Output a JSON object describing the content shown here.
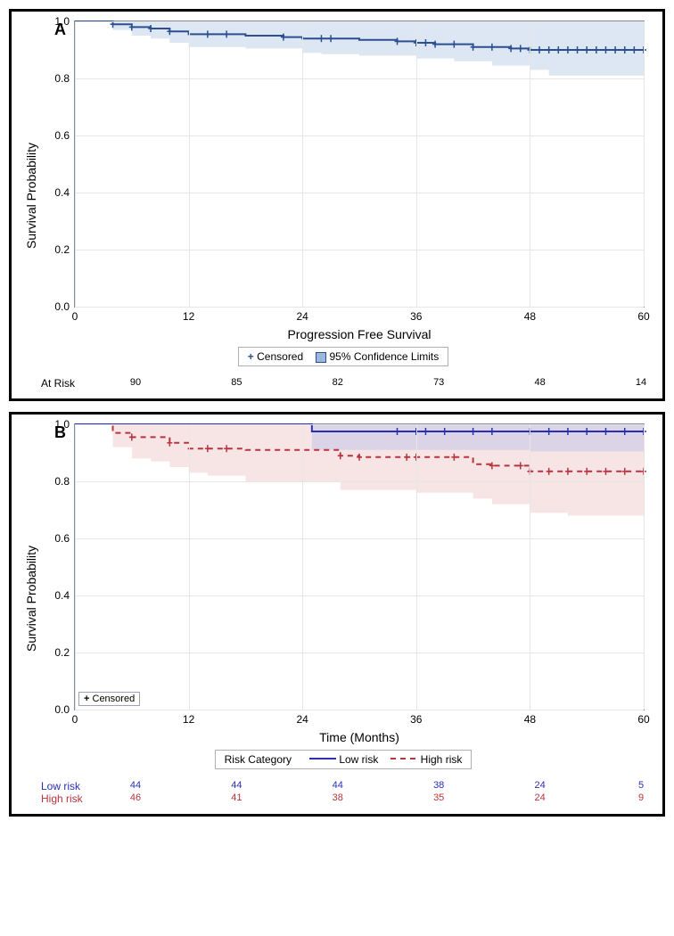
{
  "panelA": {
    "letter": "A",
    "type": "kaplan-meier",
    "ylabel": "Survival Probability",
    "xlabel": "Progression Free Survival",
    "xlim": [
      0,
      60
    ],
    "xticks": [
      0,
      12,
      24,
      36,
      48,
      60
    ],
    "ylim": [
      0,
      1
    ],
    "yticks": [
      0.0,
      0.2,
      0.4,
      0.6,
      0.8,
      1.0
    ],
    "ytick_labels": [
      "0.0",
      "0.2",
      "0.4",
      "0.6",
      "0.8",
      "1.0"
    ],
    "grid_color": "#e6e6e6",
    "series": {
      "color": "#2b4f8f",
      "line_width": 2,
      "curve": [
        [
          0,
          1.0
        ],
        [
          4,
          0.99
        ],
        [
          6,
          0.98
        ],
        [
          8,
          0.975
        ],
        [
          10,
          0.965
        ],
        [
          12,
          0.955
        ],
        [
          14,
          0.955
        ],
        [
          18,
          0.95
        ],
        [
          22,
          0.945
        ],
        [
          24,
          0.94
        ],
        [
          26,
          0.94
        ],
        [
          30,
          0.935
        ],
        [
          34,
          0.93
        ],
        [
          36,
          0.925
        ],
        [
          38,
          0.92
        ],
        [
          42,
          0.91
        ],
        [
          46,
          0.905
        ],
        [
          48,
          0.9
        ],
        [
          54,
          0.9
        ],
        [
          60,
          0.9
        ]
      ],
      "ci_lower": [
        [
          0,
          1.0
        ],
        [
          4,
          0.97
        ],
        [
          6,
          0.95
        ],
        [
          8,
          0.94
        ],
        [
          10,
          0.925
        ],
        [
          12,
          0.91
        ],
        [
          18,
          0.905
        ],
        [
          24,
          0.89
        ],
        [
          26,
          0.885
        ],
        [
          30,
          0.88
        ],
        [
          36,
          0.87
        ],
        [
          40,
          0.86
        ],
        [
          44,
          0.845
        ],
        [
          48,
          0.83
        ],
        [
          50,
          0.81
        ],
        [
          60,
          0.81
        ]
      ],
      "ci_upper": [
        [
          0,
          1.0
        ],
        [
          4,
          1.0
        ],
        [
          60,
          1.0
        ]
      ],
      "ci_fill": "#9db6dd",
      "censored_x": [
        4,
        6,
        8,
        10,
        14,
        16,
        22,
        26,
        27,
        34,
        36,
        37,
        38,
        40,
        42,
        44,
        46,
        47,
        48,
        49,
        50,
        51,
        52,
        53,
        54,
        55,
        56,
        57,
        58,
        59,
        60
      ]
    },
    "legend": {
      "censored_marker": "+",
      "censored_label": "Censored",
      "ci_marker": "square",
      "ci_label": "95% Confidence Limits"
    },
    "at_risk": {
      "label": "At Risk",
      "values": [
        90,
        85,
        82,
        73,
        48,
        14
      ]
    }
  },
  "panelB": {
    "letter": "B",
    "type": "kaplan-meier-two-group",
    "ylabel": "Survival Probability",
    "xlabel": "Time (Months)",
    "xlim": [
      0,
      60
    ],
    "xticks": [
      0,
      12,
      24,
      36,
      48,
      60
    ],
    "ylim": [
      0,
      1
    ],
    "yticks": [
      0.0,
      0.2,
      0.4,
      0.6,
      0.8,
      1.0
    ],
    "ytick_labels": [
      "0.0",
      "0.2",
      "0.4",
      "0.6",
      "0.8",
      "1.0"
    ],
    "grid_color": "#e6e6e6",
    "censored_box": {
      "label": "Censored",
      "marker": "+"
    },
    "low": {
      "color": "#2b2fb5",
      "line_width": 2,
      "dash": "none",
      "curve": [
        [
          0,
          1.0
        ],
        [
          24,
          1.0
        ],
        [
          25,
          0.975
        ],
        [
          60,
          0.975
        ]
      ],
      "ci_lower": [
        [
          0,
          1.0
        ],
        [
          24,
          1.0
        ],
        [
          25,
          0.91
        ],
        [
          48,
          0.905
        ],
        [
          60,
          0.905
        ]
      ],
      "ci_upper": [
        [
          0,
          1.0
        ],
        [
          60,
          1.0
        ]
      ],
      "ci_fill": "#a7b4e6",
      "censored_x": [
        34,
        36,
        37,
        39,
        42,
        44,
        48,
        50,
        52,
        54,
        56,
        58,
        60
      ]
    },
    "high": {
      "color": "#b7343f",
      "line_width": 2,
      "dash": "6,5",
      "curve": [
        [
          0,
          1.0
        ],
        [
          3,
          1.0
        ],
        [
          4,
          0.97
        ],
        [
          6,
          0.955
        ],
        [
          8,
          0.955
        ],
        [
          10,
          0.935
        ],
        [
          12,
          0.915
        ],
        [
          14,
          0.915
        ],
        [
          18,
          0.91
        ],
        [
          24,
          0.91
        ],
        [
          28,
          0.89
        ],
        [
          30,
          0.885
        ],
        [
          36,
          0.885
        ],
        [
          42,
          0.86
        ],
        [
          44,
          0.855
        ],
        [
          48,
          0.835
        ],
        [
          60,
          0.835
        ]
      ],
      "ci_lower": [
        [
          0,
          1.0
        ],
        [
          4,
          0.92
        ],
        [
          6,
          0.88
        ],
        [
          8,
          0.87
        ],
        [
          10,
          0.85
        ],
        [
          12,
          0.83
        ],
        [
          14,
          0.82
        ],
        [
          18,
          0.8
        ],
        [
          24,
          0.8
        ],
        [
          28,
          0.77
        ],
        [
          36,
          0.76
        ],
        [
          42,
          0.74
        ],
        [
          44,
          0.72
        ],
        [
          48,
          0.69
        ],
        [
          52,
          0.68
        ],
        [
          60,
          0.68
        ]
      ],
      "ci_upper": [
        [
          0,
          1.0
        ],
        [
          60,
          1.0
        ]
      ],
      "ci_fill": "#e8b4b8",
      "censored_x": [
        6,
        10,
        14,
        16,
        28,
        30,
        35,
        36,
        40,
        44,
        47,
        48,
        50,
        52,
        54,
        56,
        58,
        60
      ]
    },
    "legend": {
      "title": "Risk Category",
      "items": [
        {
          "label": "Low risk",
          "color": "#2b2fb5",
          "dash": "none"
        },
        {
          "label": "High risk",
          "color": "#b7343f",
          "dash": "6,5"
        }
      ]
    },
    "at_risk": {
      "rows": [
        {
          "label": "Low risk",
          "color": "#2b2fb5",
          "values": [
            44,
            44,
            44,
            38,
            24,
            5
          ]
        },
        {
          "label": "High risk",
          "color": "#b7343f",
          "values": [
            46,
            41,
            38,
            35,
            24,
            9
          ]
        }
      ]
    }
  }
}
